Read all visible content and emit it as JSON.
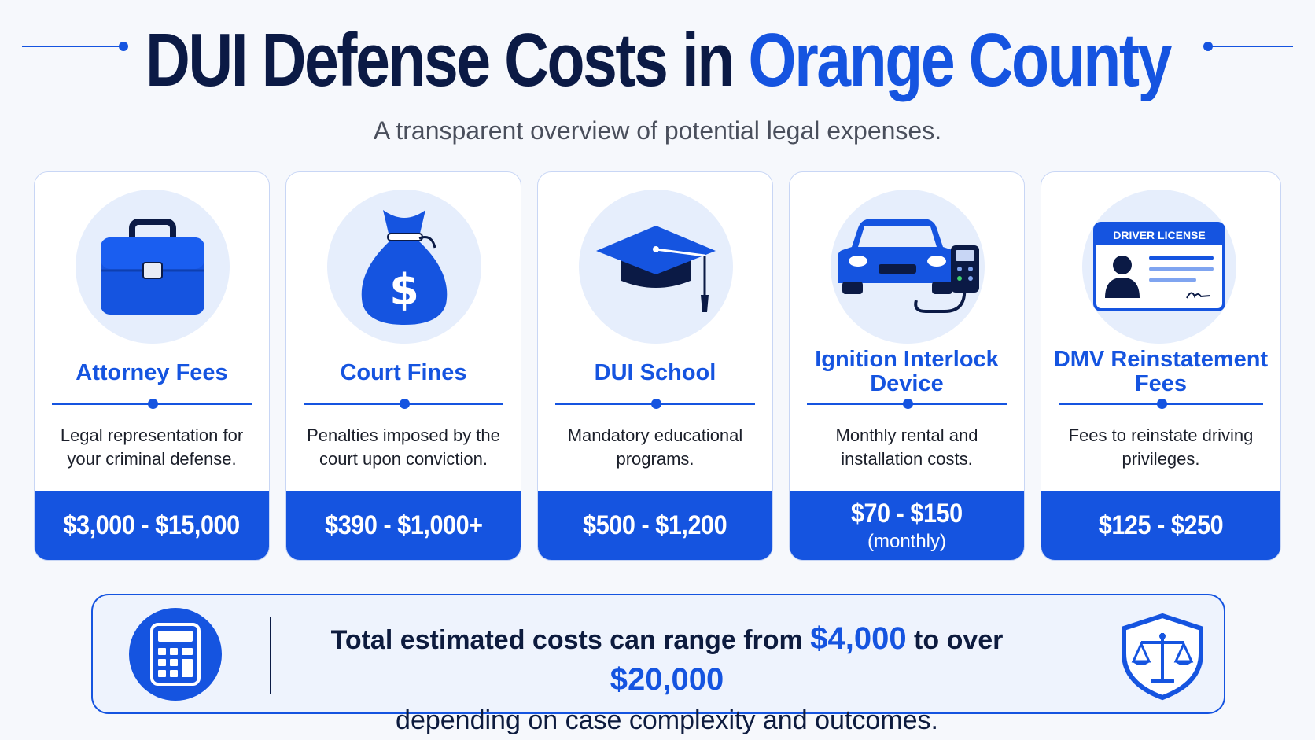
{
  "header": {
    "title_part1": "DUI Defense Costs in",
    "title_part2": "Orange County",
    "subtitle": "A transparent overview of potential legal expenses."
  },
  "cards": [
    {
      "icon": "briefcase-icon",
      "title": "Attorney Fees",
      "description": "Legal representation for your criminal defense.",
      "price": "$3,000 - $15,000",
      "note": ""
    },
    {
      "icon": "money-bag-icon",
      "title": "Court Fines",
      "description": "Penalties imposed by the court upon conviction.",
      "price": "$390 - $1,000+",
      "note": ""
    },
    {
      "icon": "graduation-cap-icon",
      "title": "DUI School",
      "description": "Mandatory educational programs.",
      "price": "$500 - $1,200",
      "note": ""
    },
    {
      "icon": "car-interlock-icon",
      "title": "Ignition Interlock Device",
      "description": "Monthly rental and installation costs.",
      "price": "$70 - $150",
      "note": "(monthly)"
    },
    {
      "icon": "driver-license-icon",
      "title": "DMV Reinstatement Fees",
      "description": "Fees to reinstate driving privileges.",
      "price": "$125 - $250",
      "note": "",
      "license_label": "DRIVER LICENSE"
    }
  ],
  "summary": {
    "lead": "Total estimated costs can range from",
    "low": "$4,000",
    "connector": "to over",
    "high": "$20,000",
    "tail": "depending on case complexity and outcomes.",
    "left_icon": "calculator-icon",
    "right_icon": "scales-shield-icon"
  },
  "colors": {
    "accent": "#1554e0",
    "navy": "#0b1a45",
    "icon_bg": "#e6eefc"
  }
}
